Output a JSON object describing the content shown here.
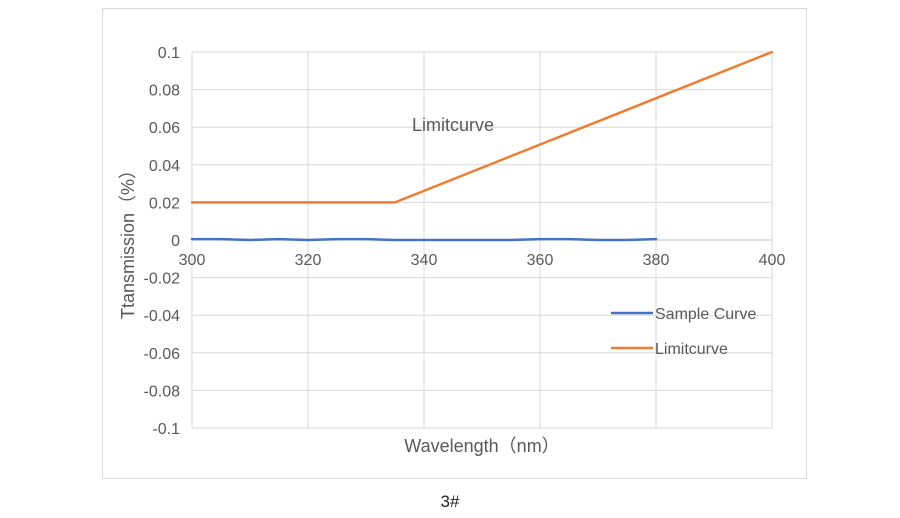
{
  "figure": {
    "caption": "3#"
  },
  "chart_data": {
    "type": "line",
    "xlabel": "Wavelength（nm）",
    "ylabel": "Ttansmission（%）",
    "xlim": [
      300,
      400
    ],
    "ylim": [
      -0.1,
      0.1
    ],
    "x_ticks": [
      300,
      320,
      340,
      360,
      380,
      400
    ],
    "y_ticks": [
      0.1,
      0.08,
      0.06,
      0.04,
      0.02,
      0,
      -0.02,
      -0.04,
      -0.06,
      -0.08,
      -0.1
    ],
    "y_tick_labels": [
      "0.1",
      "0.08",
      "0.06",
      "0.04",
      "0.02",
      "0",
      "-0.02",
      "-0.04",
      "-0.06",
      "-0.08",
      "-0.1"
    ],
    "grid": true,
    "legend_position": "right",
    "annotation": {
      "text": "Limitcurve",
      "x": 345,
      "y": 0.058
    },
    "series": [
      {
        "name": "Sample Curve",
        "color": "#4472c4",
        "x": [
          300,
          305,
          310,
          315,
          320,
          325,
          330,
          335,
          340,
          345,
          350,
          355,
          360,
          365,
          370,
          375,
          380
        ],
        "y": [
          0.0005,
          0.0005,
          0.0,
          0.0005,
          0.0,
          0.0005,
          0.0005,
          0.0,
          0.0,
          0.0,
          0.0,
          0.0,
          0.0005,
          0.0005,
          0.0,
          0.0,
          0.0005
        ]
      },
      {
        "name": "Limitcurve",
        "color": "#ed7d31",
        "x": [
          300,
          335,
          400
        ],
        "y": [
          0.02,
          0.02,
          0.1
        ]
      }
    ]
  }
}
